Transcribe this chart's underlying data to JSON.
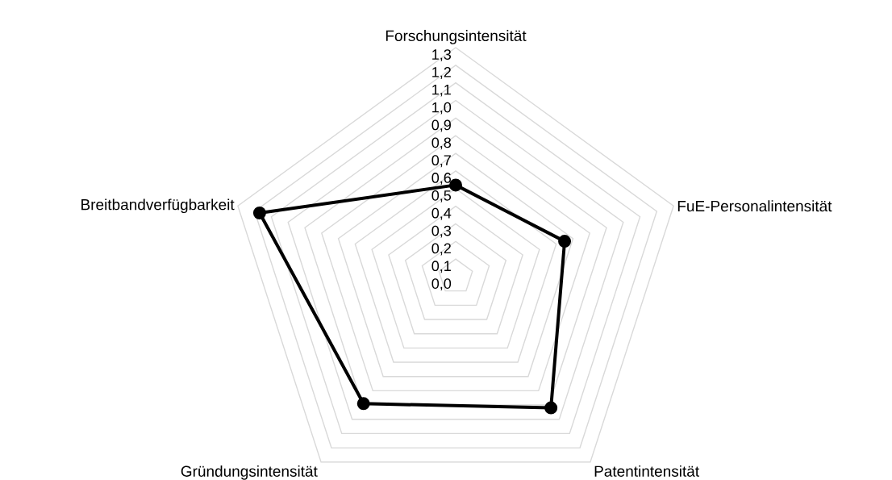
{
  "chart_data": {
    "type": "radar",
    "categories": [
      "Forschungsintensität",
      "FuE-Personalintensität",
      "Patentintensität",
      "Gründungsintensität",
      "Breitbandverfügbarkeit"
    ],
    "series": [
      {
        "color": "#000000",
        "values": [
          0.52,
          0.65,
          0.92,
          0.89,
          1.17
        ]
      }
    ],
    "ylim": [
      0,
      1.3
    ],
    "yticks": [
      {
        "value": 0.0,
        "label": "0,0"
      },
      {
        "value": 0.1,
        "label": "0,1"
      },
      {
        "value": 0.2,
        "label": "0,2"
      },
      {
        "value": 0.3,
        "label": "0,3"
      },
      {
        "value": 0.4,
        "label": "0,4"
      },
      {
        "value": 0.5,
        "label": "0,5"
      },
      {
        "value": 0.6,
        "label": "0,6"
      },
      {
        "value": 0.7,
        "label": "0,7"
      },
      {
        "value": 0.8,
        "label": "0,8"
      },
      {
        "value": 0.9,
        "label": "0,9"
      },
      {
        "value": 1.0,
        "label": "1,0"
      },
      {
        "value": 1.1,
        "label": "1,1"
      },
      {
        "value": 1.2,
        "label": "1,2"
      },
      {
        "value": 1.3,
        "label": "1,3"
      }
    ],
    "grid": true,
    "marker": "circle",
    "line_style": "solid"
  }
}
